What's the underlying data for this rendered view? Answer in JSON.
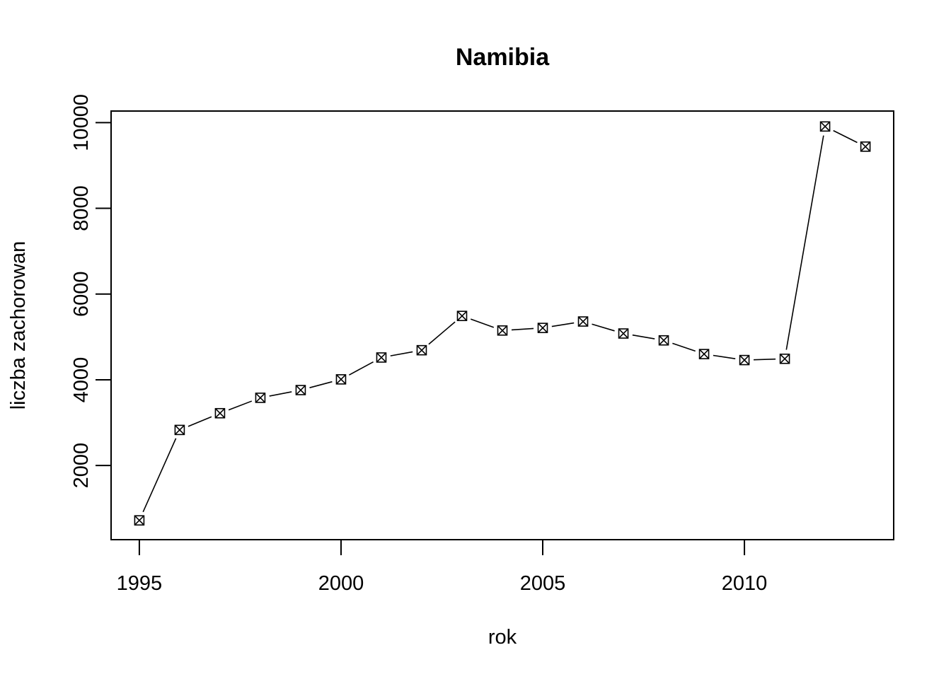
{
  "chart_data": {
    "type": "line",
    "title": "Namibia",
    "xlabel": "rok",
    "ylabel": "liczba zachorowan",
    "xlim": [
      1994.3,
      2013.7
    ],
    "ylim": [
      270,
      10270
    ],
    "x_ticks": [
      1995,
      2000,
      2005,
      2010
    ],
    "y_ticks": [
      2000,
      4000,
      6000,
      8000,
      10000
    ],
    "grid": false,
    "marker": "boxed-x",
    "series": [
      {
        "x": [
          1995,
          1996,
          1997,
          1998,
          1999,
          2000,
          2001,
          2002,
          2003,
          2004,
          2005,
          2006,
          2007,
          2008,
          2009,
          2010,
          2011,
          2012,
          2013
        ],
        "values": [
          720,
          2830,
          3220,
          3580,
          3760,
          4010,
          4520,
          4690,
          5490,
          5150,
          5210,
          5360,
          5080,
          4920,
          4600,
          4460,
          4490,
          9910,
          9440
        ]
      }
    ]
  },
  "colors": {
    "line": "#000000",
    "background": "#ffffff"
  }
}
